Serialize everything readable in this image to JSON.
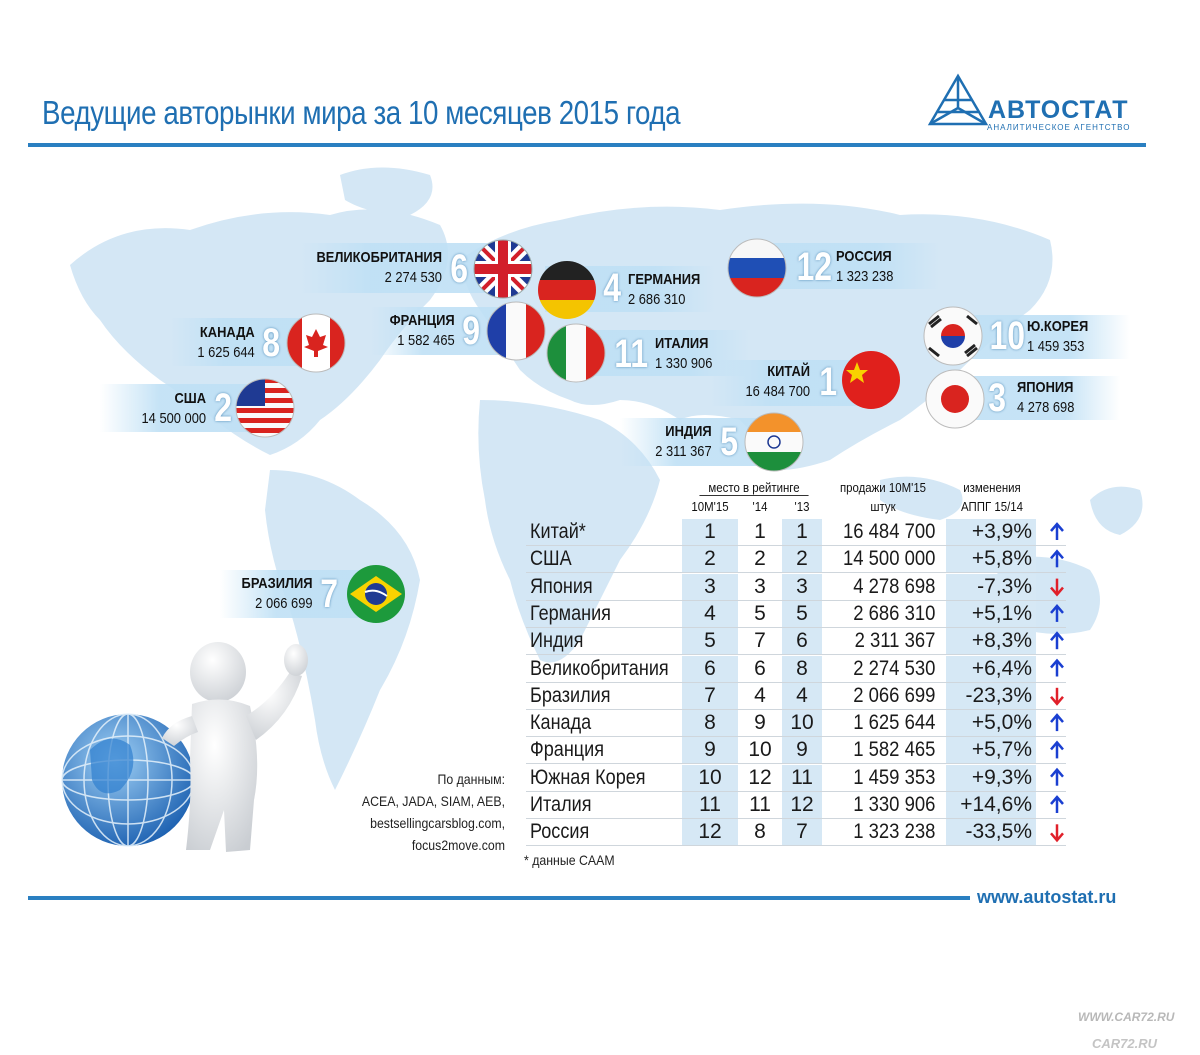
{
  "title": "Ведущие авторынки мира за 10 месяцев 2015 года",
  "logo": {
    "name": "АВТОСТАТ",
    "subtitle": "Аналитическое агентство"
  },
  "website": "www.autostat.ru",
  "watermark": [
    "WWW.CAR72.RU",
    "CAR72.RU"
  ],
  "sources_label": "По данным:",
  "sources": [
    "ACEA, JADA, SIAM, AEB,",
    "bestsellingcarsblog.com,",
    "focus2move.com"
  ],
  "footnote": "* данные CAAM",
  "colors": {
    "accent": "#1f6fb2",
    "map": "#cfe3f3",
    "band": "#bfe0f5",
    "up_arrow": "#1a3fd1",
    "down_arrow": "#e0202a"
  },
  "map_labels": [
    {
      "name": "Великобритания",
      "sales": "2 274 530",
      "rank": "6",
      "flag": "uk-flag-icon"
    },
    {
      "name": "Германия",
      "sales": "2 686 310",
      "rank": "4",
      "flag": "germany-flag-icon"
    },
    {
      "name": "Россия",
      "sales": "1 323 238",
      "rank": "12",
      "flag": "russia-flag-icon"
    },
    {
      "name": "Канада",
      "sales": "1 625 644",
      "rank": "8",
      "flag": "canada-flag-icon"
    },
    {
      "name": "Франция",
      "sales": "1 582 465",
      "rank": "9",
      "flag": "france-flag-icon"
    },
    {
      "name": "Италия",
      "sales": "1 330 906",
      "rank": "11",
      "flag": "italy-flag-icon"
    },
    {
      "name": "Ю.Корея",
      "sales": "1 459 353",
      "rank": "10",
      "flag": "korea-flag-icon"
    },
    {
      "name": "США",
      "sales": "14 500 000",
      "rank": "2",
      "flag": "usa-flag-icon"
    },
    {
      "name": "Китай",
      "sales": "16 484 700",
      "rank": "1",
      "flag": "china-flag-icon"
    },
    {
      "name": "Япония",
      "sales": "4 278 698",
      "rank": "3",
      "flag": "japan-flag-icon"
    },
    {
      "name": "Индия",
      "sales": "2 311 367",
      "rank": "5",
      "flag": "india-flag-icon"
    },
    {
      "name": "Бразилия",
      "sales": "2 066 699",
      "rank": "7",
      "flag": "brazil-flag-icon"
    }
  ],
  "chart_data": {
    "type": "table",
    "header": {
      "rank_group": "место в рейтинге",
      "rank_cols": [
        "10M'15",
        "'14",
        "'13"
      ],
      "sales": [
        "продажи 10M'15",
        "штук"
      ],
      "change": [
        "изменения",
        "АППГ 15/14"
      ]
    },
    "rows": [
      {
        "country": "Китай*",
        "rank_10m15": 1,
        "rank_14": 1,
        "rank_13": 1,
        "sales": "16 484 700",
        "change": "+3,9%",
        "trend": "up"
      },
      {
        "country": "США",
        "rank_10m15": 2,
        "rank_14": 2,
        "rank_13": 2,
        "sales": "14 500 000",
        "change": "+5,8%",
        "trend": "up"
      },
      {
        "country": "Япония",
        "rank_10m15": 3,
        "rank_14": 3,
        "rank_13": 3,
        "sales": "4 278 698",
        "change": "-7,3%",
        "trend": "down"
      },
      {
        "country": "Германия",
        "rank_10m15": 4,
        "rank_14": 5,
        "rank_13": 5,
        "sales": "2 686 310",
        "change": "+5,1%",
        "trend": "up"
      },
      {
        "country": "Индия",
        "rank_10m15": 5,
        "rank_14": 7,
        "rank_13": 6,
        "sales": "2 311 367",
        "change": "+8,3%",
        "trend": "up"
      },
      {
        "country": "Великобритания",
        "rank_10m15": 6,
        "rank_14": 6,
        "rank_13": 8,
        "sales": "2 274 530",
        "change": "+6,4%",
        "trend": "up"
      },
      {
        "country": "Бразилия",
        "rank_10m15": 7,
        "rank_14": 4,
        "rank_13": 4,
        "sales": "2 066 699",
        "change": "-23,3%",
        "trend": "down"
      },
      {
        "country": "Канада",
        "rank_10m15": 8,
        "rank_14": 9,
        "rank_13": 10,
        "sales": "1 625 644",
        "change": "+5,0%",
        "trend": "up"
      },
      {
        "country": "Франция",
        "rank_10m15": 9,
        "rank_14": 10,
        "rank_13": 9,
        "sales": "1 582 465",
        "change": "+5,7%",
        "trend": "up"
      },
      {
        "country": "Южная Корея",
        "rank_10m15": 10,
        "rank_14": 12,
        "rank_13": 11,
        "sales": "1 459 353",
        "change": "+9,3%",
        "trend": "up"
      },
      {
        "country": "Италия",
        "rank_10m15": 11,
        "rank_14": 11,
        "rank_13": 12,
        "sales": "1 330 906",
        "change": "+14,6%",
        "trend": "up"
      },
      {
        "country": "Россия",
        "rank_10m15": 12,
        "rank_14": 8,
        "rank_13": 7,
        "sales": "1 323 238",
        "change": "-33,5%",
        "trend": "down"
      }
    ]
  }
}
